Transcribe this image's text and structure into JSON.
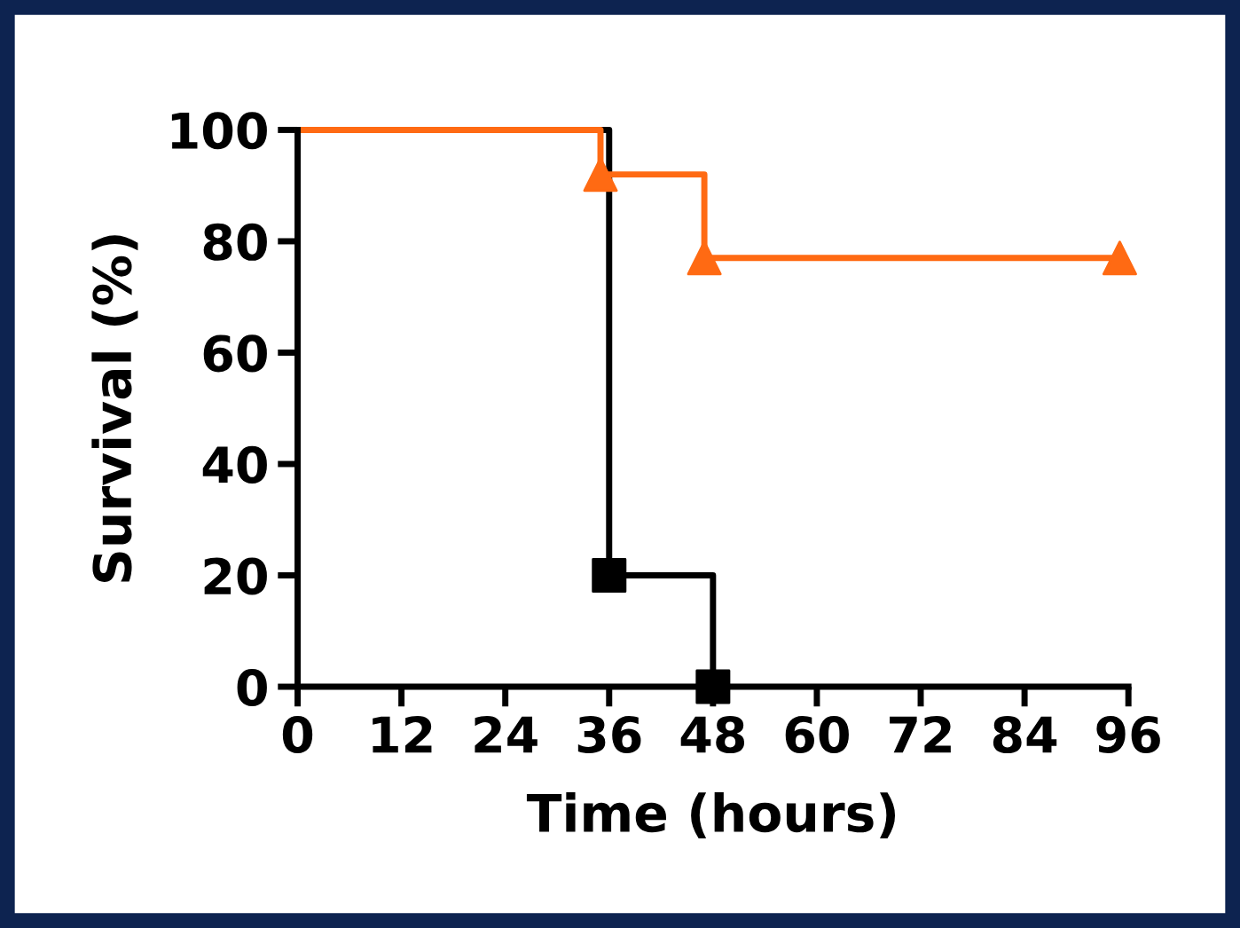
{
  "chart_data": {
    "type": "step",
    "xlabel": "Time (hours)",
    "ylabel": "Survival (%)",
    "series": [
      {
        "color": "#000000",
        "x": [
          0,
          36,
          48
        ],
        "values": [
          100,
          20,
          0
        ],
        "marker": "none"
      },
      {
        "type": "scatter",
        "color": "#000000",
        "x": [
          36,
          48
        ],
        "values": [
          20,
          0
        ],
        "marker": "square"
      },
      {
        "color": "#ff6a13",
        "x": [
          0,
          35,
          47,
          95
        ],
        "values": [
          100,
          92,
          77,
          77
        ],
        "marker": "none"
      },
      {
        "type": "scatter",
        "color": "#ff6a13",
        "x": [
          35,
          47,
          95
        ],
        "values": [
          92,
          77,
          77
        ],
        "marker": "triangle"
      }
    ],
    "xlim": [
      0,
      96
    ],
    "xticks": [
      0,
      12,
      24,
      36,
      48,
      60,
      72,
      84,
      96
    ],
    "ylim": [
      0,
      100
    ],
    "yticks": [
      0,
      20,
      40,
      60,
      80,
      100
    ],
    "grid": false,
    "legend": false
  }
}
